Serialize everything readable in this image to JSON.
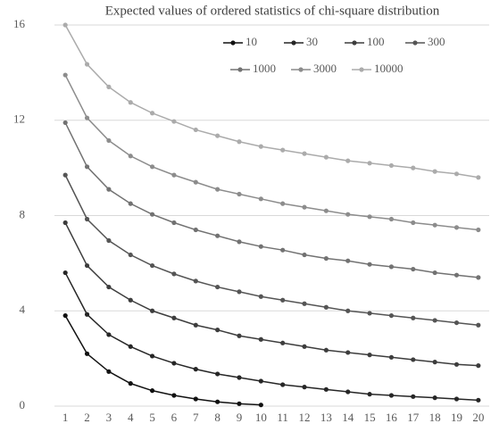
{
  "chart_data": {
    "type": "line",
    "title": "Expected values of ordered statistics of chi-square distribution",
    "categories": [
      "1",
      "2",
      "3",
      "4",
      "5",
      "6",
      "7",
      "8",
      "9",
      "10",
      "11",
      "12",
      "13",
      "14",
      "15",
      "16",
      "17",
      "18",
      "19",
      "20"
    ],
    "series": [
      {
        "name": "10",
        "color": "#111111",
        "values": [
          3.8,
          2.2,
          1.45,
          0.95,
          0.65,
          0.45,
          0.3,
          0.18,
          0.1,
          0.05,
          null,
          null,
          null,
          null,
          null,
          null,
          null,
          null,
          null,
          null
        ]
      },
      {
        "name": "30",
        "color": "#262626",
        "values": [
          5.6,
          3.85,
          3.0,
          2.5,
          2.1,
          1.8,
          1.55,
          1.35,
          1.2,
          1.05,
          0.9,
          0.8,
          0.7,
          0.6,
          0.5,
          0.45,
          0.4,
          0.35,
          0.3,
          0.25
        ]
      },
      {
        "name": "100",
        "color": "#3d3d3d",
        "values": [
          7.7,
          5.9,
          5.0,
          4.45,
          4.0,
          3.7,
          3.4,
          3.2,
          2.95,
          2.8,
          2.65,
          2.5,
          2.35,
          2.25,
          2.15,
          2.05,
          1.95,
          1.85,
          1.75,
          1.7
        ]
      },
      {
        "name": "300",
        "color": "#555555",
        "values": [
          9.7,
          7.85,
          6.95,
          6.35,
          5.9,
          5.55,
          5.25,
          5.0,
          4.8,
          4.6,
          4.45,
          4.3,
          4.15,
          4.0,
          3.9,
          3.8,
          3.7,
          3.6,
          3.5,
          3.4
        ]
      },
      {
        "name": "1000",
        "color": "#727272",
        "values": [
          11.9,
          10.05,
          9.1,
          8.5,
          8.05,
          7.7,
          7.4,
          7.15,
          6.9,
          6.7,
          6.55,
          6.35,
          6.2,
          6.1,
          5.95,
          5.85,
          5.75,
          5.6,
          5.5,
          5.4
        ]
      },
      {
        "name": "3000",
        "color": "#8c8c8c",
        "values": [
          13.9,
          12.1,
          11.15,
          10.5,
          10.05,
          9.7,
          9.4,
          9.1,
          8.9,
          8.7,
          8.5,
          8.35,
          8.2,
          8.05,
          7.95,
          7.85,
          7.7,
          7.6,
          7.5,
          7.4
        ]
      },
      {
        "name": "10000",
        "color": "#ababab",
        "values": [
          16.0,
          14.35,
          13.4,
          12.75,
          12.3,
          11.95,
          11.6,
          11.35,
          11.1,
          10.9,
          10.75,
          10.6,
          10.45,
          10.3,
          10.2,
          10.1,
          10.0,
          9.85,
          9.75,
          9.6
        ]
      }
    ],
    "ylim": [
      0,
      16
    ],
    "yticks": [
      0,
      4,
      8,
      12,
      16
    ],
    "grid": true,
    "legend": "top-right"
  }
}
